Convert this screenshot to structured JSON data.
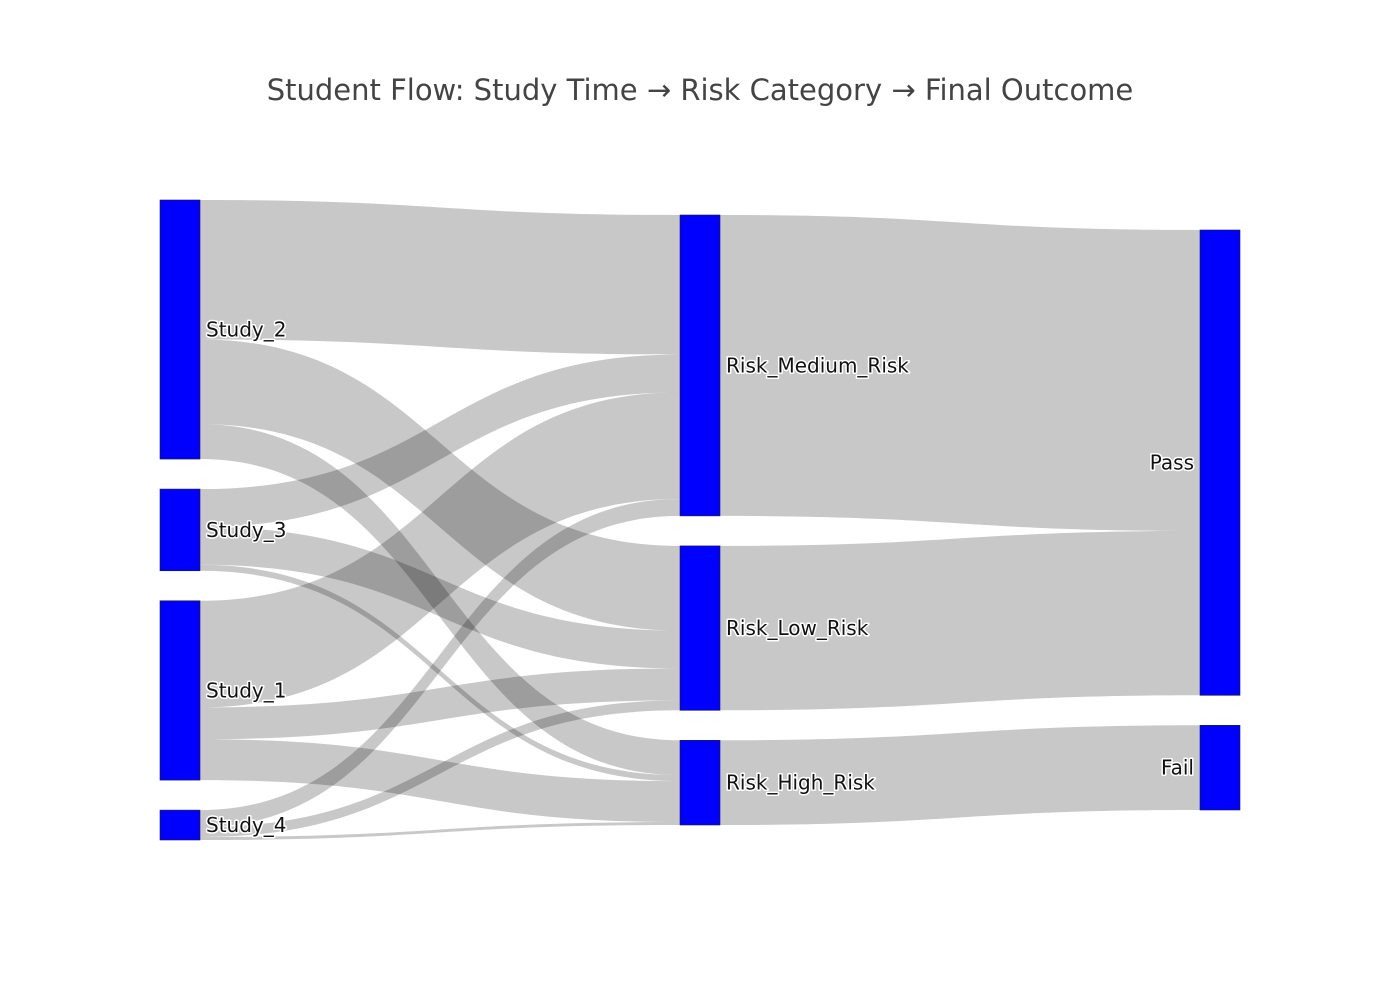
{
  "chart_data": {
    "type": "sankey",
    "title": "Student Flow: Study Time → Risk Category → Final Outcome",
    "node_color": "#0000ff",
    "link_color": "#c8c8c8",
    "columns": [
      [
        "Study_2",
        "Study_3",
        "Study_1",
        "Study_4"
      ],
      [
        "Risk_Medium_Risk",
        "Risk_Low_Risk",
        "Risk_High_Risk"
      ],
      [
        "Pass",
        "Fail"
      ]
    ],
    "nodes": [
      {
        "id": "Study_2",
        "label": "Study_2"
      },
      {
        "id": "Study_3",
        "label": "Study_3"
      },
      {
        "id": "Study_1",
        "label": "Study_1"
      },
      {
        "id": "Study_4",
        "label": "Study_4"
      },
      {
        "id": "Risk_Medium_Risk",
        "label": "Risk_Medium_Risk"
      },
      {
        "id": "Risk_Low_Risk",
        "label": "Risk_Low_Risk"
      },
      {
        "id": "Risk_High_Risk",
        "label": "Risk_High_Risk"
      },
      {
        "id": "Pass",
        "label": "Pass"
      },
      {
        "id": "Fail",
        "label": "Fail"
      }
    ],
    "links": [
      {
        "source": "Study_2",
        "target": "Risk_Medium_Risk",
        "value": 140
      },
      {
        "source": "Study_2",
        "target": "Risk_Low_Risk",
        "value": 85
      },
      {
        "source": "Study_2",
        "target": "Risk_High_Risk",
        "value": 35
      },
      {
        "source": "Study_3",
        "target": "Risk_Medium_Risk",
        "value": 38
      },
      {
        "source": "Study_3",
        "target": "Risk_Low_Risk",
        "value": 38
      },
      {
        "source": "Study_3",
        "target": "Risk_High_Risk",
        "value": 6
      },
      {
        "source": "Study_1",
        "target": "Risk_Medium_Risk",
        "value": 107
      },
      {
        "source": "Study_1",
        "target": "Risk_Low_Risk",
        "value": 32
      },
      {
        "source": "Study_1",
        "target": "Risk_High_Risk",
        "value": 41
      },
      {
        "source": "Study_4",
        "target": "Risk_Medium_Risk",
        "value": 17
      },
      {
        "source": "Study_4",
        "target": "Risk_Low_Risk",
        "value": 10
      },
      {
        "source": "Study_4",
        "target": "Risk_High_Risk",
        "value": 3
      },
      {
        "source": "Risk_Medium_Risk",
        "target": "Pass",
        "value": 302
      },
      {
        "source": "Risk_Low_Risk",
        "target": "Pass",
        "value": 165
      },
      {
        "source": "Risk_High_Risk",
        "target": "Fail",
        "value": 85
      }
    ]
  }
}
